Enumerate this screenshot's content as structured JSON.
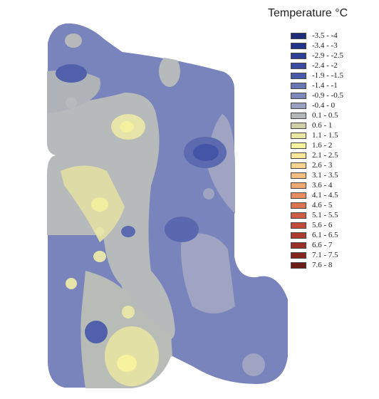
{
  "legend": {
    "title": "Temperature °C",
    "items": [
      {
        "label": "-3.5 - -4",
        "color": "#1d2d7a"
      },
      {
        "label": "-3.4 - -3",
        "color": "#23358a"
      },
      {
        "label": "-2.9 - -2.5",
        "color": "#2e3f96"
      },
      {
        "label": "-2.4 - -2",
        "color": "#3a4ba0"
      },
      {
        "label": "-1.9 - -1.5",
        "color": "#4a5aaa"
      },
      {
        "label": "-1.4 - -1",
        "color": "#6a77b5"
      },
      {
        "label": "-0.9 - -0.5",
        "color": "#7f89bb"
      },
      {
        "label": "-0.4 - 0",
        "color": "#9aa0bf"
      },
      {
        "label": "0.1 - 0.5",
        "color": "#b4b8b8"
      },
      {
        "label": "0.6 - 1",
        "color": "#cfcfa8"
      },
      {
        "label": "1.1 - 1.5",
        "color": "#e9e8a2"
      },
      {
        "label": "1.6 - 2",
        "color": "#f7f29e"
      },
      {
        "label": "2.1 - 2.5",
        "color": "#fbe79a"
      },
      {
        "label": "2.6 - 3",
        "color": "#f8d58f"
      },
      {
        "label": "3.1 - 3.5",
        "color": "#f3be7f"
      },
      {
        "label": "3.6 - 4",
        "color": "#eea870"
      },
      {
        "label": "4.1 - 4.5",
        "color": "#e78d60"
      },
      {
        "label": "4.6 - 5",
        "color": "#dc7452"
      },
      {
        "label": "5.1 - 5.5",
        "color": "#cf5c44"
      },
      {
        "label": "5.6 - 6",
        "color": "#c14a3a"
      },
      {
        "label": "6.1 - 6.5",
        "color": "#ad3b2f"
      },
      {
        "label": "6.6 - 7",
        "color": "#992f26"
      },
      {
        "label": "7.1 - 7.5",
        "color": "#84251e"
      },
      {
        "label": "7.6 - 8",
        "color": "#6e1c17"
      }
    ]
  }
}
